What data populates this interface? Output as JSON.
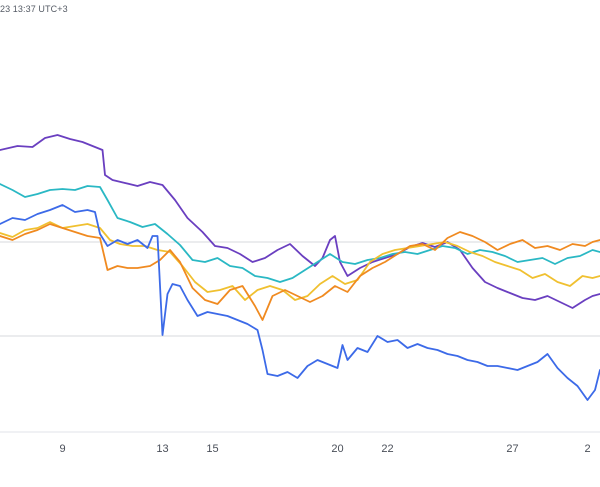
{
  "header": {
    "timestamp": "23 13:37 UTC+3"
  },
  "chart_data": {
    "type": "line",
    "title": "",
    "xlabel": "",
    "ylabel": "",
    "x_ticks": [
      "9",
      "13",
      "15",
      "20",
      "22",
      "27",
      "2"
    ],
    "x_range": [
      6.5,
      30.5
    ],
    "y_range": [
      0,
      487
    ],
    "grid": {
      "horizontal": true,
      "vertical": false
    },
    "series": [
      {
        "color": "#6a3fc0",
        "points": [
          [
            6.5,
            150
          ],
          [
            7.2,
            146
          ],
          [
            7.8,
            147
          ],
          [
            8.3,
            138
          ],
          [
            8.8,
            135
          ],
          [
            9.3,
            139
          ],
          [
            9.8,
            142
          ],
          [
            10.2,
            146
          ],
          [
            10.6,
            150
          ],
          [
            10.7,
            175
          ],
          [
            11.0,
            180
          ],
          [
            11.5,
            183
          ],
          [
            12.0,
            186
          ],
          [
            12.5,
            182
          ],
          [
            13.0,
            185
          ],
          [
            13.5,
            200
          ],
          [
            14.0,
            218
          ],
          [
            14.6,
            232
          ],
          [
            15.1,
            246
          ],
          [
            15.6,
            248
          ],
          [
            16.1,
            254
          ],
          [
            16.6,
            262
          ],
          [
            17.1,
            258
          ],
          [
            17.6,
            250
          ],
          [
            18.1,
            244
          ],
          [
            18.6,
            256
          ],
          [
            19.1,
            266
          ],
          [
            19.4,
            258
          ],
          [
            19.7,
            240
          ],
          [
            19.9,
            236
          ],
          [
            20.1,
            262
          ],
          [
            20.4,
            276
          ],
          [
            20.9,
            268
          ],
          [
            21.4,
            262
          ],
          [
            21.9,
            258
          ],
          [
            22.4,
            254
          ],
          [
            22.9,
            247
          ],
          [
            23.4,
            243
          ],
          [
            23.9,
            247
          ],
          [
            24.4,
            242
          ],
          [
            24.9,
            250
          ],
          [
            25.4,
            268
          ],
          [
            25.9,
            282
          ],
          [
            26.4,
            288
          ],
          [
            26.9,
            293
          ],
          [
            27.4,
            298
          ],
          [
            27.9,
            300
          ],
          [
            28.4,
            296
          ],
          [
            28.9,
            302
          ],
          [
            29.4,
            308
          ],
          [
            29.9,
            300
          ],
          [
            30.2,
            296
          ],
          [
            30.5,
            294
          ]
        ]
      },
      {
        "color": "#2ab8c4",
        "points": [
          [
            6.5,
            184
          ],
          [
            7.0,
            190
          ],
          [
            7.5,
            197
          ],
          [
            8.0,
            194
          ],
          [
            8.5,
            190
          ],
          [
            9.0,
            189
          ],
          [
            9.5,
            190
          ],
          [
            10.0,
            186
          ],
          [
            10.5,
            187
          ],
          [
            10.8,
            200
          ],
          [
            11.2,
            218
          ],
          [
            11.7,
            222
          ],
          [
            12.2,
            227
          ],
          [
            12.7,
            224
          ],
          [
            13.2,
            234
          ],
          [
            13.7,
            245
          ],
          [
            14.2,
            260
          ],
          [
            14.7,
            262
          ],
          [
            15.2,
            258
          ],
          [
            15.7,
            266
          ],
          [
            16.2,
            268
          ],
          [
            16.7,
            276
          ],
          [
            17.2,
            278
          ],
          [
            17.7,
            282
          ],
          [
            18.2,
            278
          ],
          [
            18.7,
            270
          ],
          [
            19.2,
            262
          ],
          [
            19.7,
            254
          ],
          [
            20.2,
            262
          ],
          [
            20.7,
            264
          ],
          [
            21.2,
            260
          ],
          [
            21.7,
            258
          ],
          [
            22.2,
            254
          ],
          [
            22.7,
            252
          ],
          [
            23.2,
            254
          ],
          [
            23.7,
            250
          ],
          [
            24.2,
            246
          ],
          [
            24.7,
            248
          ],
          [
            25.2,
            254
          ],
          [
            25.7,
            250
          ],
          [
            26.2,
            252
          ],
          [
            26.7,
            256
          ],
          [
            27.2,
            262
          ],
          [
            27.7,
            260
          ],
          [
            28.2,
            258
          ],
          [
            28.7,
            264
          ],
          [
            29.2,
            258
          ],
          [
            29.7,
            256
          ],
          [
            30.2,
            250
          ],
          [
            30.5,
            252
          ]
        ]
      },
      {
        "color": "#f0c030",
        "points": [
          [
            6.5,
            233
          ],
          [
            7.0,
            237
          ],
          [
            7.5,
            230
          ],
          [
            8.0,
            228
          ],
          [
            8.5,
            222
          ],
          [
            9.0,
            228
          ],
          [
            9.5,
            226
          ],
          [
            10.0,
            224
          ],
          [
            10.5,
            228
          ],
          [
            10.9,
            240
          ],
          [
            11.3,
            244
          ],
          [
            11.8,
            246
          ],
          [
            12.3,
            246
          ],
          [
            12.8,
            250
          ],
          [
            13.3,
            252
          ],
          [
            13.8,
            266
          ],
          [
            14.3,
            282
          ],
          [
            14.8,
            292
          ],
          [
            15.3,
            290
          ],
          [
            15.8,
            286
          ],
          [
            16.3,
            300
          ],
          [
            16.8,
            290
          ],
          [
            17.3,
            286
          ],
          [
            17.8,
            290
          ],
          [
            18.3,
            300
          ],
          [
            18.8,
            296
          ],
          [
            19.3,
            284
          ],
          [
            19.8,
            276
          ],
          [
            20.3,
            284
          ],
          [
            20.8,
            280
          ],
          [
            21.3,
            262
          ],
          [
            21.8,
            254
          ],
          [
            22.3,
            250
          ],
          [
            22.8,
            248
          ],
          [
            23.3,
            246
          ],
          [
            23.8,
            244
          ],
          [
            24.3,
            242
          ],
          [
            24.8,
            246
          ],
          [
            25.3,
            252
          ],
          [
            25.8,
            256
          ],
          [
            26.3,
            262
          ],
          [
            26.8,
            266
          ],
          [
            27.3,
            270
          ],
          [
            27.8,
            278
          ],
          [
            28.3,
            274
          ],
          [
            28.8,
            282
          ],
          [
            29.3,
            286
          ],
          [
            29.8,
            276
          ],
          [
            30.2,
            278
          ],
          [
            30.5,
            276
          ]
        ]
      },
      {
        "color": "#f08a20",
        "points": [
          [
            6.5,
            236
          ],
          [
            7.0,
            240
          ],
          [
            7.5,
            234
          ],
          [
            8.0,
            230
          ],
          [
            8.5,
            224
          ],
          [
            9.0,
            228
          ],
          [
            9.5,
            232
          ],
          [
            10.0,
            236
          ],
          [
            10.5,
            238
          ],
          [
            10.8,
            270
          ],
          [
            11.2,
            266
          ],
          [
            11.6,
            268
          ],
          [
            12.0,
            268
          ],
          [
            12.5,
            266
          ],
          [
            12.9,
            260
          ],
          [
            13.3,
            250
          ],
          [
            13.7,
            262
          ],
          [
            14.2,
            288
          ],
          [
            14.7,
            300
          ],
          [
            15.2,
            304
          ],
          [
            15.7,
            290
          ],
          [
            16.2,
            286
          ],
          [
            16.7,
            306
          ],
          [
            17.0,
            320
          ],
          [
            17.4,
            296
          ],
          [
            17.9,
            290
          ],
          [
            18.4,
            296
          ],
          [
            18.9,
            302
          ],
          [
            19.4,
            296
          ],
          [
            19.9,
            286
          ],
          [
            20.4,
            292
          ],
          [
            20.9,
            276
          ],
          [
            21.4,
            268
          ],
          [
            21.9,
            262
          ],
          [
            22.4,
            254
          ],
          [
            22.9,
            246
          ],
          [
            23.4,
            244
          ],
          [
            23.9,
            250
          ],
          [
            24.4,
            238
          ],
          [
            24.9,
            232
          ],
          [
            25.4,
            236
          ],
          [
            25.9,
            242
          ],
          [
            26.4,
            250
          ],
          [
            26.9,
            244
          ],
          [
            27.4,
            240
          ],
          [
            27.9,
            248
          ],
          [
            28.4,
            246
          ],
          [
            28.9,
            250
          ],
          [
            29.4,
            244
          ],
          [
            29.9,
            246
          ],
          [
            30.2,
            242
          ],
          [
            30.5,
            240
          ]
        ]
      },
      {
        "color": "#3c6ae8",
        "points": [
          [
            6.5,
            224
          ],
          [
            7.0,
            218
          ],
          [
            7.5,
            220
          ],
          [
            8.0,
            214
          ],
          [
            8.5,
            210
          ],
          [
            9.0,
            205
          ],
          [
            9.5,
            212
          ],
          [
            10.0,
            210
          ],
          [
            10.3,
            212
          ],
          [
            10.5,
            234
          ],
          [
            10.8,
            246
          ],
          [
            11.2,
            240
          ],
          [
            11.6,
            244
          ],
          [
            12.0,
            240
          ],
          [
            12.4,
            248
          ],
          [
            12.6,
            236
          ],
          [
            12.8,
            236
          ],
          [
            13.0,
            335
          ],
          [
            13.2,
            294
          ],
          [
            13.4,
            284
          ],
          [
            13.7,
            286
          ],
          [
            14.0,
            300
          ],
          [
            14.4,
            316
          ],
          [
            14.8,
            312
          ],
          [
            15.2,
            314
          ],
          [
            15.6,
            316
          ],
          [
            16.0,
            320
          ],
          [
            16.4,
            324
          ],
          [
            16.8,
            330
          ],
          [
            17.0,
            350
          ],
          [
            17.2,
            374
          ],
          [
            17.6,
            376
          ],
          [
            18.0,
            372
          ],
          [
            18.4,
            378
          ],
          [
            18.8,
            366
          ],
          [
            19.2,
            360
          ],
          [
            19.6,
            364
          ],
          [
            20.0,
            368
          ],
          [
            20.2,
            345
          ],
          [
            20.4,
            360
          ],
          [
            20.8,
            348
          ],
          [
            21.2,
            352
          ],
          [
            21.6,
            336
          ],
          [
            22.0,
            342
          ],
          [
            22.4,
            340
          ],
          [
            22.8,
            348
          ],
          [
            23.2,
            344
          ],
          [
            23.6,
            348
          ],
          [
            24.0,
            350
          ],
          [
            24.4,
            354
          ],
          [
            24.8,
            356
          ],
          [
            25.2,
            360
          ],
          [
            25.6,
            362
          ],
          [
            26.0,
            366
          ],
          [
            26.4,
            366
          ],
          [
            26.8,
            368
          ],
          [
            27.2,
            370
          ],
          [
            27.6,
            366
          ],
          [
            28.0,
            362
          ],
          [
            28.4,
            354
          ],
          [
            28.8,
            368
          ],
          [
            29.2,
            378
          ],
          [
            29.6,
            386
          ],
          [
            30.0,
            400
          ],
          [
            30.3,
            390
          ],
          [
            30.5,
            370
          ]
        ]
      }
    ]
  }
}
